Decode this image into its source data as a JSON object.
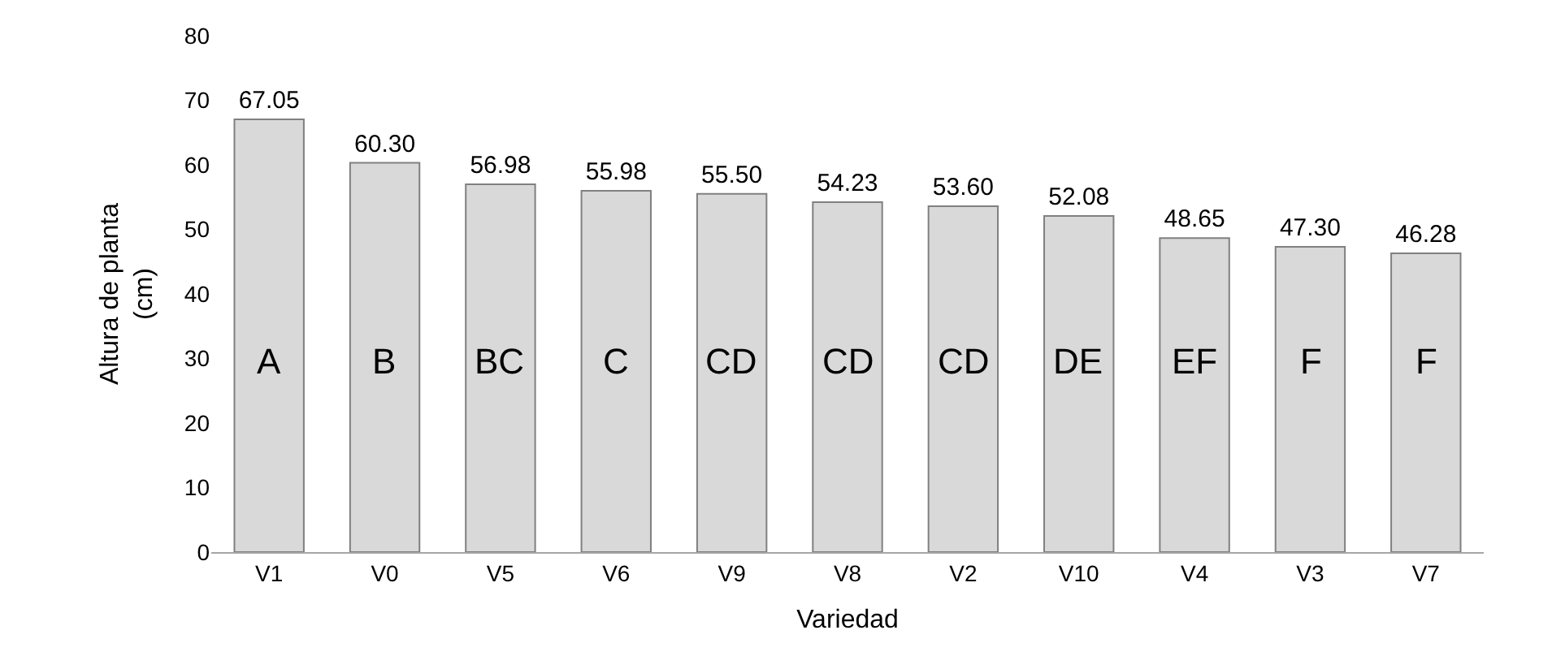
{
  "chart_data": {
    "type": "bar",
    "xlabel": "Variedad",
    "ylabel": "Altura de planta\n(cm)",
    "categories": [
      "V1",
      "V0",
      "V5",
      "V6",
      "V9",
      "V8",
      "V2",
      "V10",
      "V4",
      "V3",
      "V7"
    ],
    "values": [
      67.05,
      60.3,
      56.98,
      55.98,
      55.5,
      54.23,
      53.6,
      52.08,
      48.65,
      47.3,
      46.28
    ],
    "value_labels": [
      "67.05",
      "60.30",
      "56.98",
      "55.98",
      "55.50",
      "54.23",
      "53.60",
      "52.08",
      "48.65",
      "47.30",
      "46.28"
    ],
    "color": "#d9d9d9",
    "ylim": [
      0,
      80
    ],
    "yticks": [
      0,
      10,
      20,
      30,
      40,
      50,
      60,
      70,
      80
    ],
    "grid": false,
    "annotations": [
      "A",
      "B",
      "BC",
      "C",
      "CD",
      "CD",
      "CD",
      "DE",
      "EF",
      "F",
      "F"
    ]
  }
}
